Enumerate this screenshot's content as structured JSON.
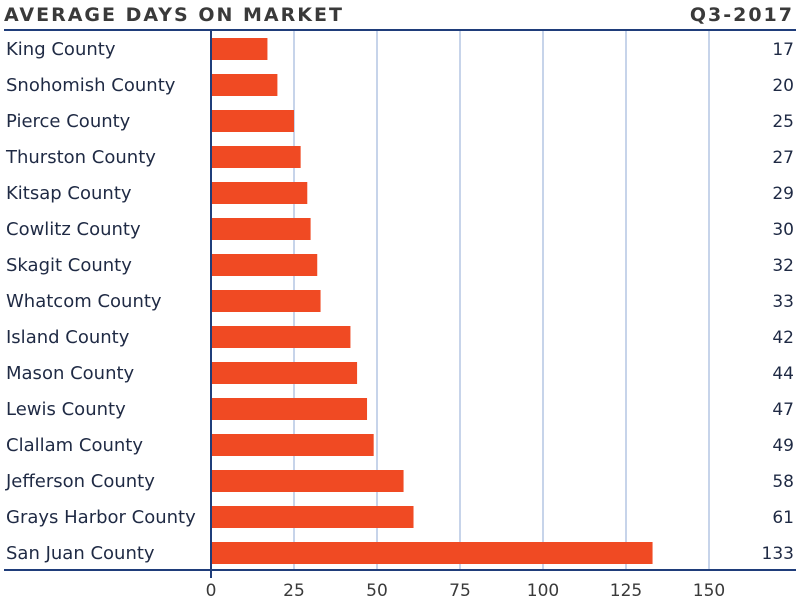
{
  "header": {
    "title": "AVERAGE DAYS ON MARKET",
    "period": "Q3-2017"
  },
  "colors": {
    "bar": "#f04a23",
    "rule": "#1f3d7a",
    "grid": "#8fa9d6",
    "text": "#1f2a44"
  },
  "chart_data": {
    "type": "bar",
    "orientation": "horizontal",
    "title": "AVERAGE DAYS ON MARKET",
    "subtitle": "Q3-2017",
    "categories": [
      "King County",
      "Snohomish County",
      "Pierce County",
      "Thurston County",
      "Kitsap County",
      "Cowlitz County",
      "Skagit County",
      "Whatcom County",
      "Island County",
      "Mason County",
      "Lewis County",
      "Clallam County",
      "Jefferson County",
      "Grays Harbor County",
      "San Juan County"
    ],
    "values": [
      17,
      20,
      25,
      27,
      29,
      30,
      32,
      33,
      42,
      44,
      47,
      49,
      58,
      61,
      133
    ],
    "xlim": [
      0,
      175
    ],
    "xticks": [
      0,
      25,
      50,
      75,
      100,
      125,
      150
    ],
    "grid": true,
    "data_labels": true,
    "legend": "none"
  }
}
